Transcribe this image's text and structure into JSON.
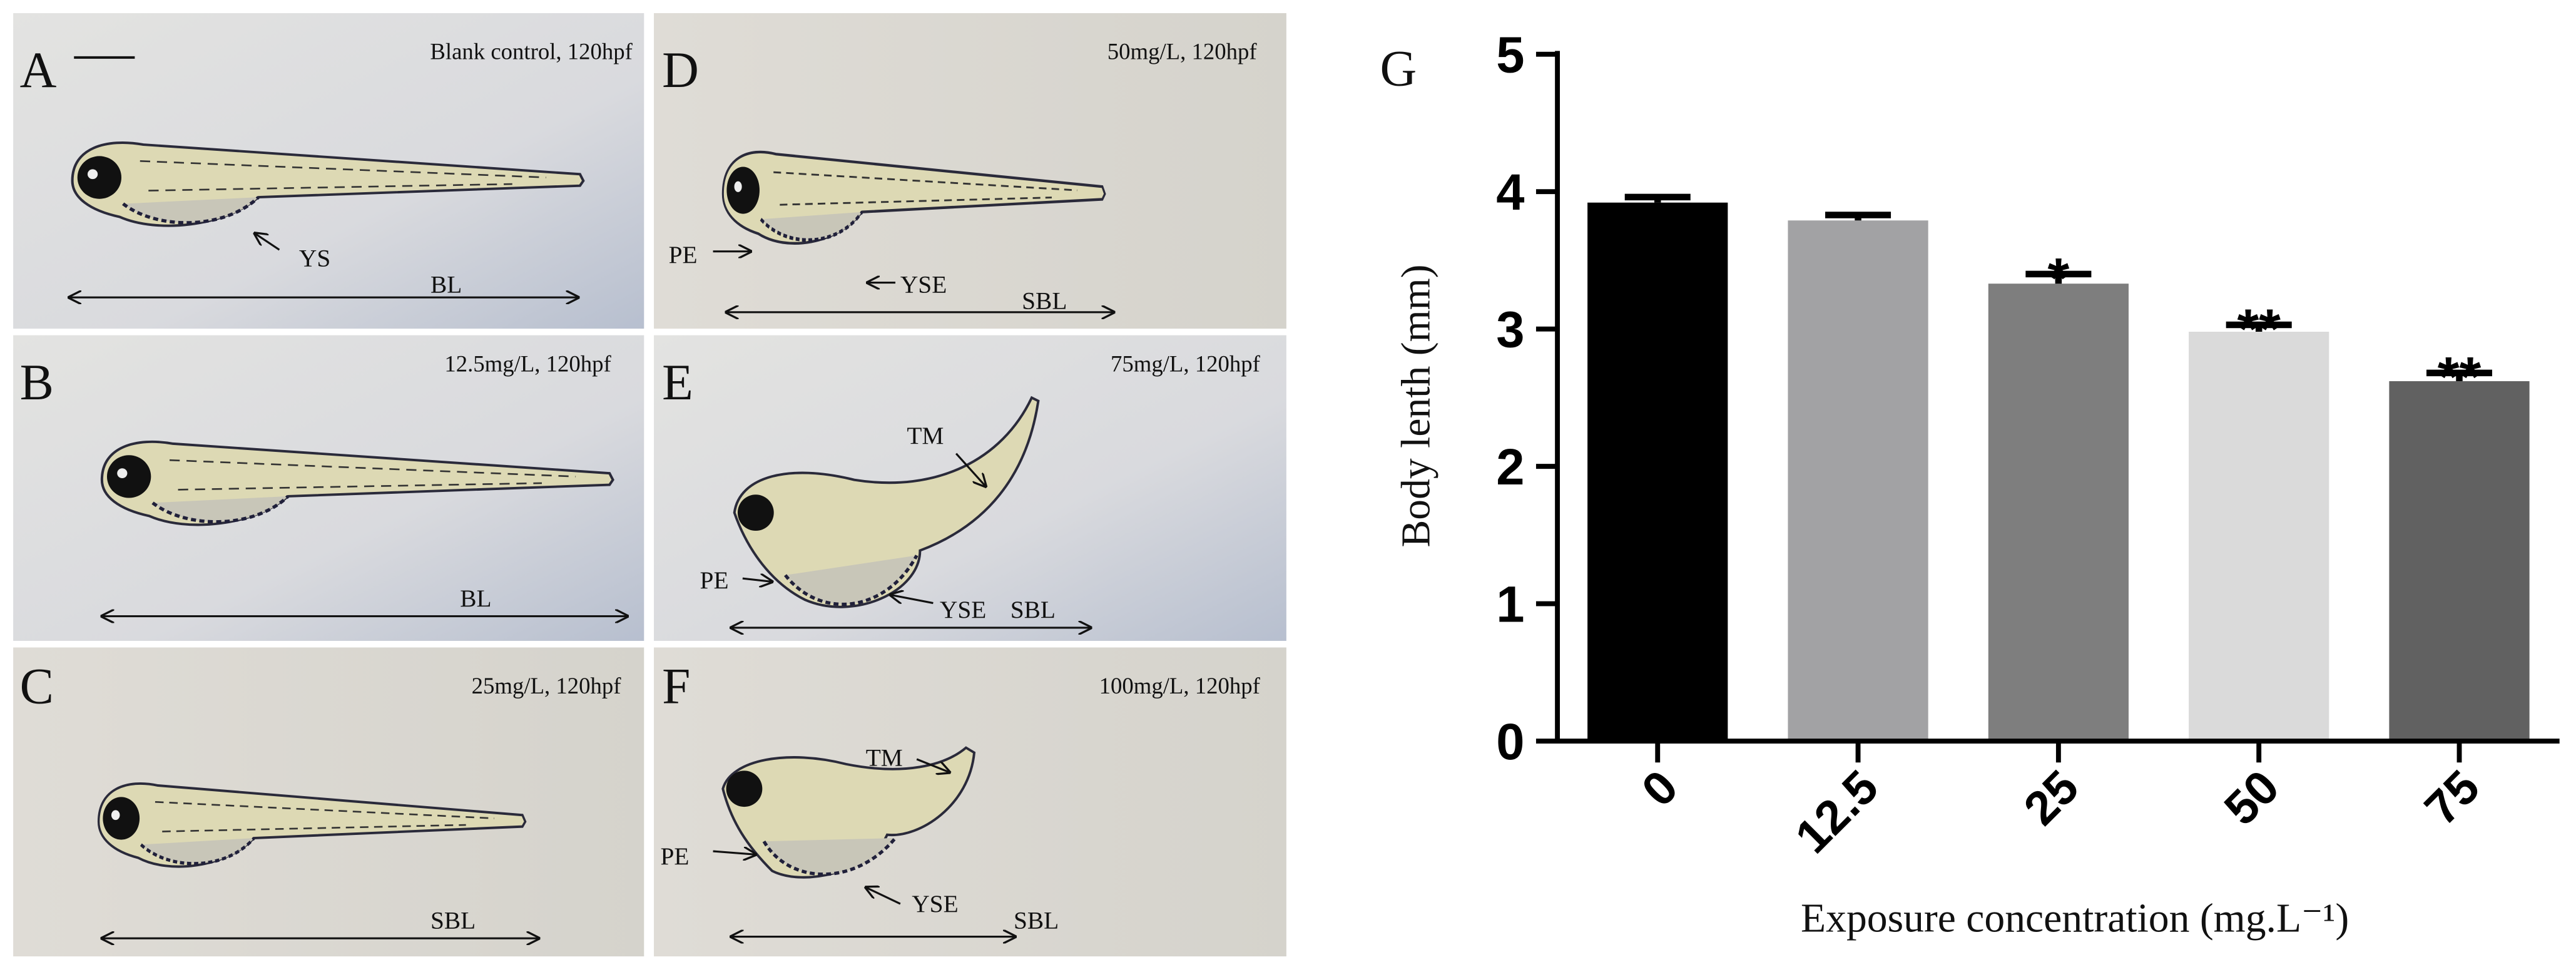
{
  "panels": [
    {
      "letter": "A",
      "caption": "Blank control, 120hpf",
      "labels": [
        "YS",
        "BL"
      ]
    },
    {
      "letter": "B",
      "caption": "12.5mg/L, 120hpf",
      "labels": [
        "BL"
      ]
    },
    {
      "letter": "C",
      "caption": "25mg/L, 120hpf",
      "labels": [
        "SBL"
      ]
    },
    {
      "letter": "D",
      "caption": "50mg/L, 120hpf",
      "labels": [
        "PE",
        "YSE",
        "SBL"
      ]
    },
    {
      "letter": "E",
      "caption": "75mg/L, 120hpf",
      "labels": [
        "TM",
        "PE",
        "YSE",
        "SBL"
      ]
    },
    {
      "letter": "F",
      "caption": "100mg/L, 120hpf",
      "labels": [
        "TM",
        "PE",
        "YSE",
        "SBL"
      ]
    }
  ],
  "chart_data": {
    "type": "bar",
    "panel_letter": "G",
    "x_label": "Exposure concentration (mg.L⁻¹)",
    "y_label": "Body lenth (mm)",
    "categories": [
      "0",
      "12.5",
      "25",
      "50",
      "75"
    ],
    "values": [
      3.92,
      3.79,
      3.33,
      2.98,
      2.62
    ],
    "errors": [
      0.04,
      0.04,
      0.07,
      0.05,
      0.06
    ],
    "colors": [
      "#000000",
      "#a2a2a4",
      "#7e7e7e",
      "#dadada",
      "#616161"
    ],
    "annotations": [
      {
        "category": "25",
        "text": "*"
      },
      {
        "category": "50",
        "text": "**"
      },
      {
        "category": "75",
        "text": "**"
      }
    ],
    "ylim": [
      0,
      5
    ],
    "yticks": [
      0,
      1,
      2,
      3,
      4,
      5
    ]
  }
}
